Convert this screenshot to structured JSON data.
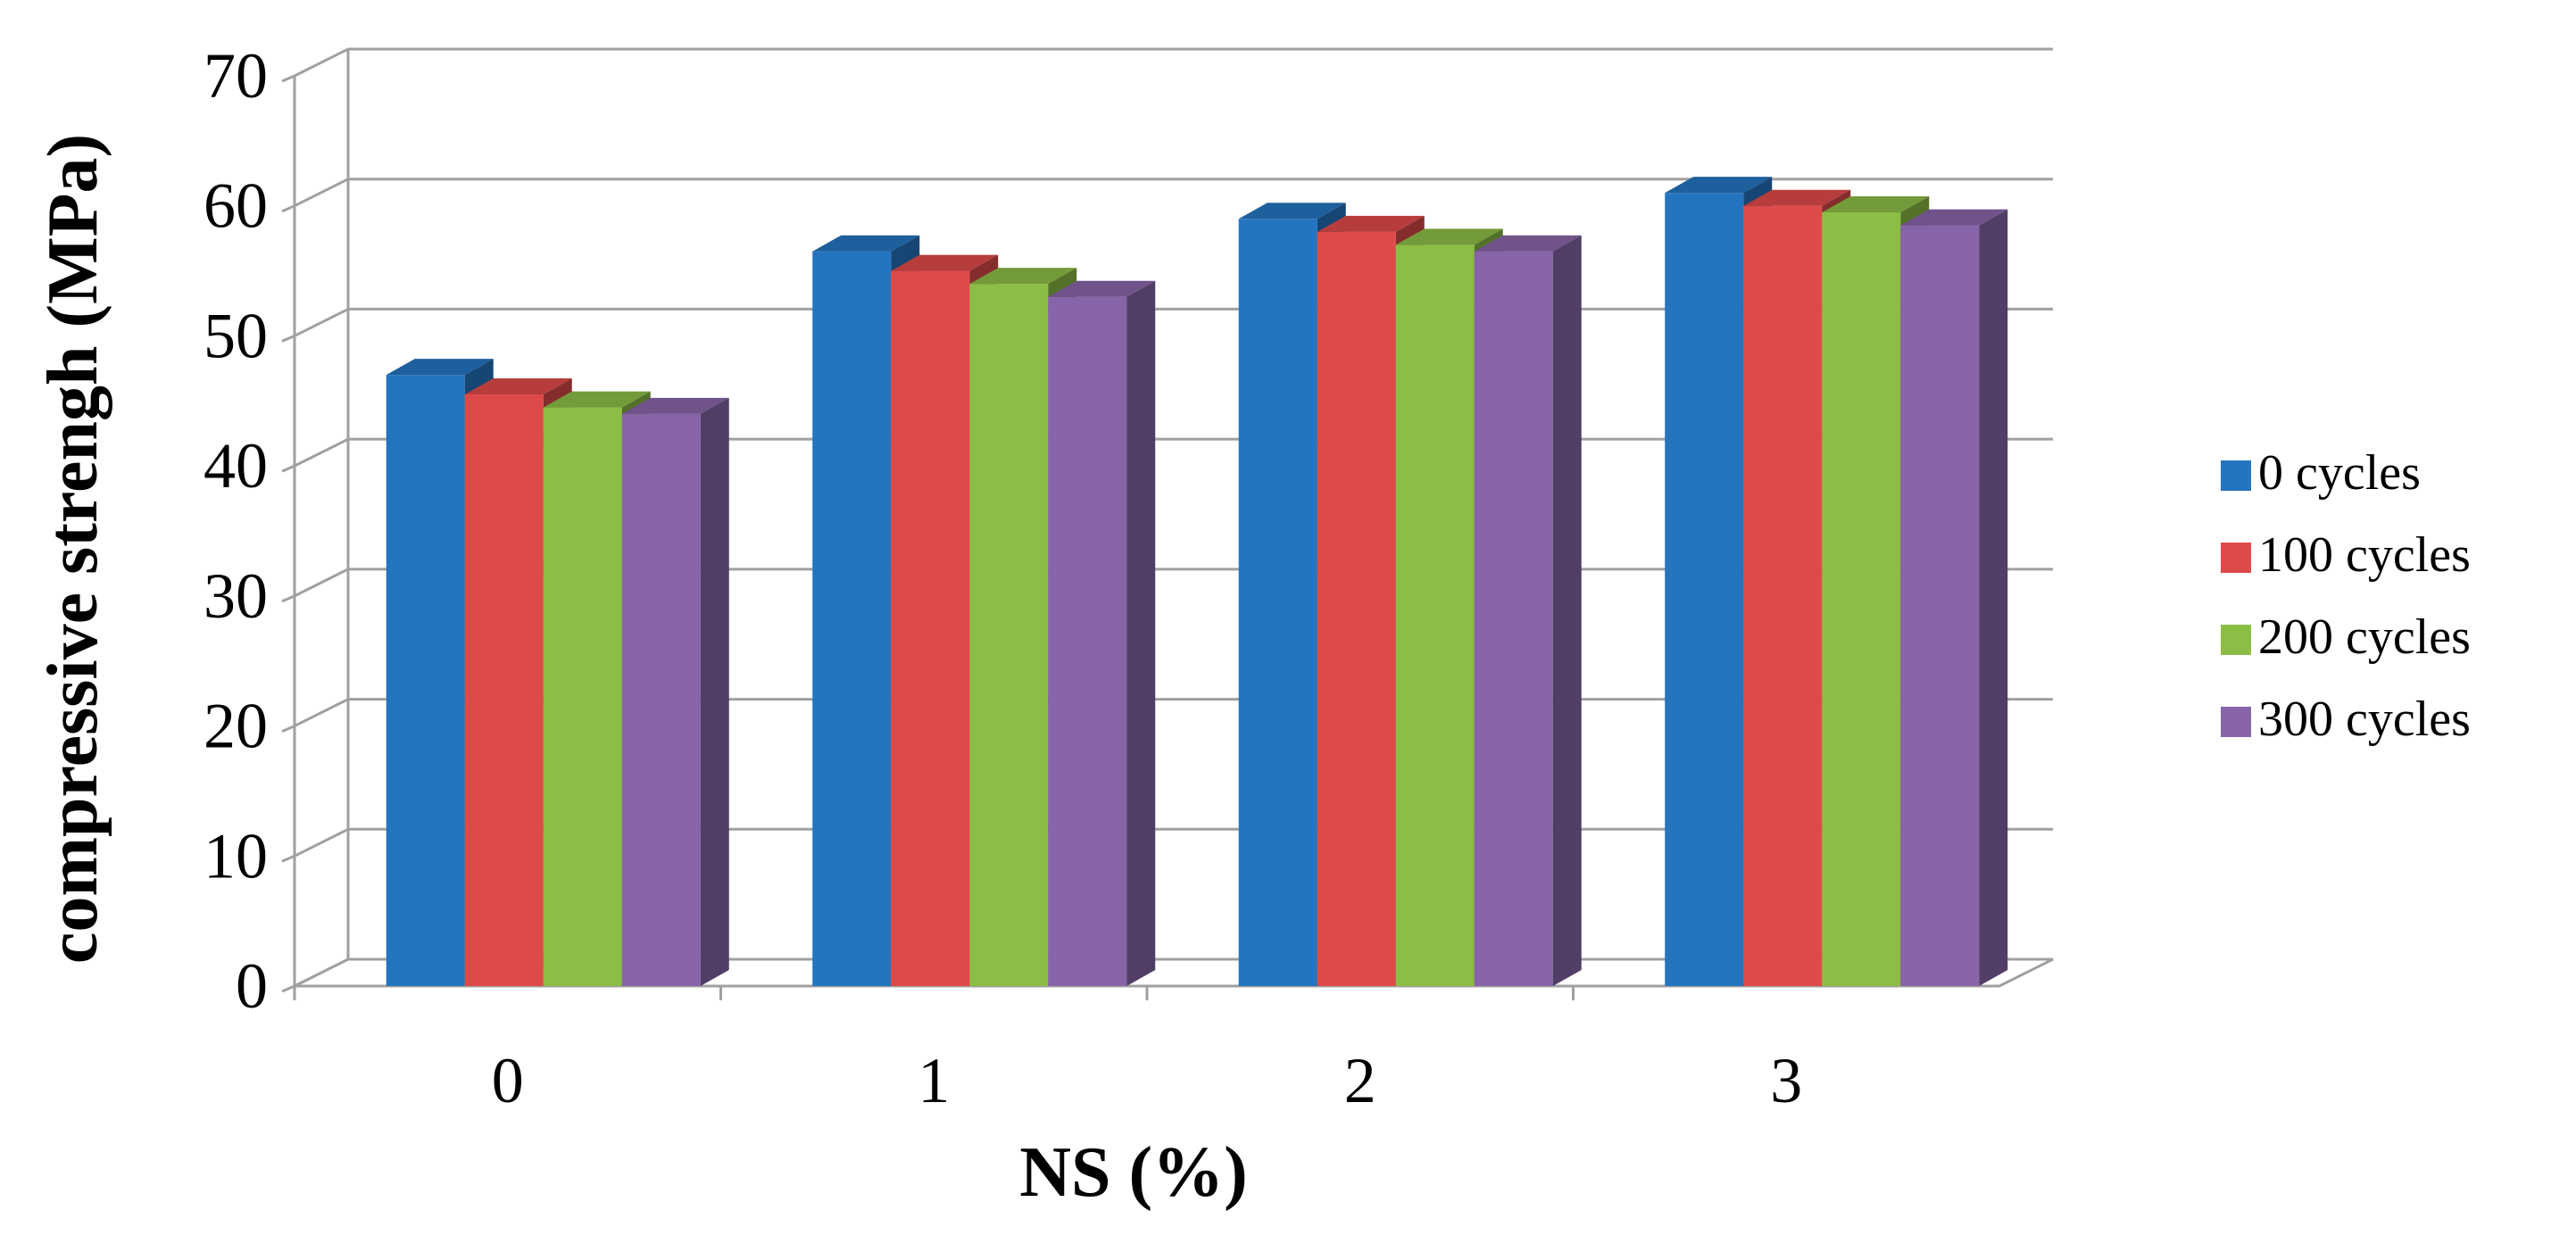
{
  "chart_data": {
    "type": "bar",
    "title": "",
    "xlabel": "NS (%)",
    "ylabel": "compressive strengh (MPa)",
    "categories": [
      "0",
      "1",
      "2",
      "3"
    ],
    "ylim": [
      0,
      70
    ],
    "yticks": [
      "0",
      "10",
      "20",
      "30",
      "40",
      "50",
      "60",
      "70"
    ],
    "grid": true,
    "legend_position": "right",
    "series": [
      {
        "name": "0 cycles",
        "color": "#2474c0",
        "values": [
          47,
          56.5,
          59,
          61
        ]
      },
      {
        "name": "100 cycles",
        "color": "#de4a49",
        "values": [
          45.5,
          55,
          58,
          60
        ]
      },
      {
        "name": "200 cycles",
        "color": "#8cbd45",
        "values": [
          44.5,
          54,
          57,
          59.5
        ]
      },
      {
        "name": "300 cycles",
        "color": "#8765a8",
        "values": [
          44,
          53,
          56.5,
          58.5
        ]
      }
    ]
  }
}
